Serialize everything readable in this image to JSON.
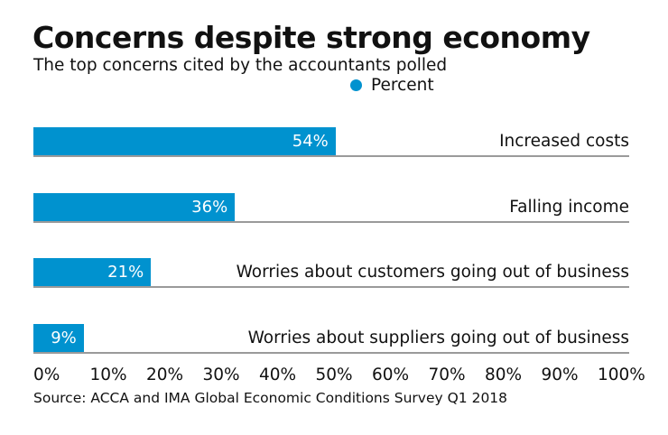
{
  "chart_data": {
    "type": "bar",
    "orientation": "horizontal",
    "title": "Concerns despite strong economy",
    "subtitle": "The top concerns cited by the accountants polled",
    "legend": [
      {
        "name": "Percent",
        "color": "#0092cf"
      }
    ],
    "legend_placement": "top",
    "categories": [
      "Increased costs",
      "Falling income",
      "Worries about customers going out of business",
      "Worries about suppliers going out of business"
    ],
    "series": [
      {
        "name": "Percent",
        "values": [
          54,
          36,
          21,
          9
        ]
      }
    ],
    "data_labels": [
      "54%",
      "36%",
      "21%",
      "9%"
    ],
    "xlim": [
      0,
      100
    ],
    "x_ticks": [
      "0%",
      "10%",
      "20%",
      "30%",
      "40%",
      "50%",
      "60%",
      "70%",
      "80%",
      "90%",
      "100%"
    ],
    "grid": false,
    "source": "Source: ACCA and IMA Global Economic Conditions Survey Q1 2018"
  },
  "colors": {
    "bar": "#0092cf",
    "row_line": "#9a9a9a"
  }
}
